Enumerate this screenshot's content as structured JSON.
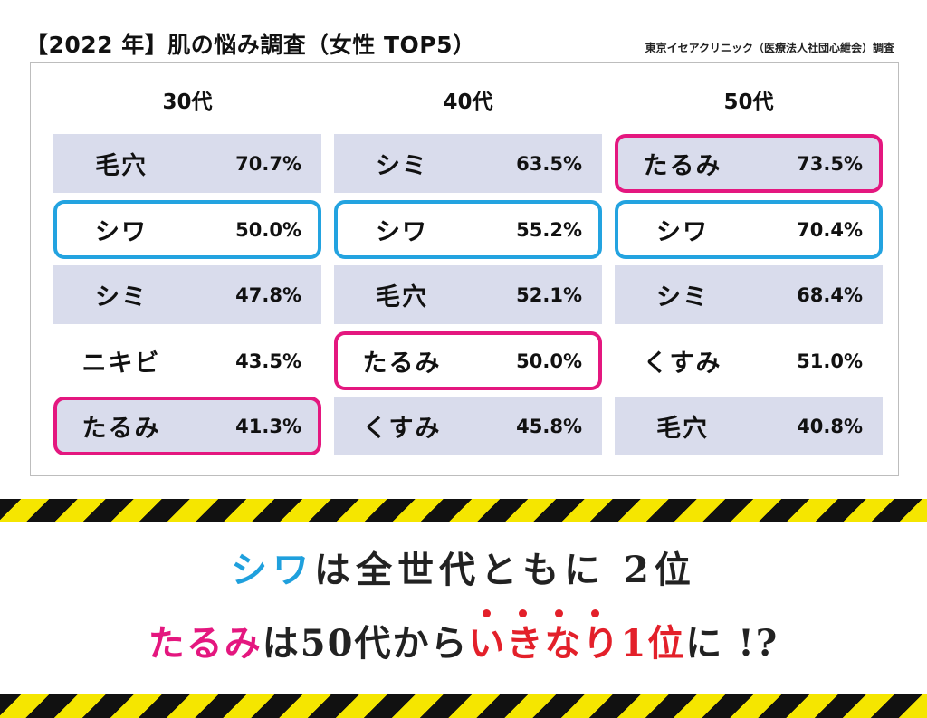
{
  "title": "【2022 年】肌の悩み調査（女性 TOP5）",
  "source": "東京イセアクリニック（医療法人社団心紲会）調査",
  "chart_data": {
    "type": "table",
    "columns": [
      {
        "label": "30代",
        "rows": [
          {
            "item": "毛穴",
            "value": "70.7%",
            "shade": true,
            "highlight": ""
          },
          {
            "item": "シワ",
            "value": "50.0%",
            "shade": false,
            "highlight": "blue"
          },
          {
            "item": "シミ",
            "value": "47.8%",
            "shade": true,
            "highlight": ""
          },
          {
            "item": "ニキビ",
            "value": "43.5%",
            "shade": false,
            "highlight": ""
          },
          {
            "item": "たるみ",
            "value": "41.3%",
            "shade": true,
            "highlight": "pink"
          }
        ]
      },
      {
        "label": "40代",
        "rows": [
          {
            "item": "シミ",
            "value": "63.5%",
            "shade": true,
            "highlight": ""
          },
          {
            "item": "シワ",
            "value": "55.2%",
            "shade": false,
            "highlight": "blue"
          },
          {
            "item": "毛穴",
            "value": "52.1%",
            "shade": true,
            "highlight": ""
          },
          {
            "item": "たるみ",
            "value": "50.0%",
            "shade": false,
            "highlight": "pink"
          },
          {
            "item": "くすみ",
            "value": "45.8%",
            "shade": true,
            "highlight": ""
          }
        ]
      },
      {
        "label": "50代",
        "rows": [
          {
            "item": "たるみ",
            "value": "73.5%",
            "shade": true,
            "highlight": "pink"
          },
          {
            "item": "シワ",
            "value": "70.4%",
            "shade": false,
            "highlight": "blue"
          },
          {
            "item": "シミ",
            "value": "68.4%",
            "shade": true,
            "highlight": ""
          },
          {
            "item": "くすみ",
            "value": "51.0%",
            "shade": false,
            "highlight": ""
          },
          {
            "item": "毛穴",
            "value": "40.8%",
            "shade": true,
            "highlight": ""
          }
        ]
      }
    ]
  },
  "caption": {
    "line1_highlight": "シワ",
    "line1_rest": "は全世代ともに 2位",
    "line2_highlight": "たるみ",
    "line2_mid": "は50代から",
    "line2_emphasis": "いきなり1位",
    "line2_end": "に !?"
  },
  "colors": {
    "blue": "#1fa0dd",
    "pink": "#e4177f",
    "red": "#e3202a",
    "row_shade": "#d9dcec"
  }
}
